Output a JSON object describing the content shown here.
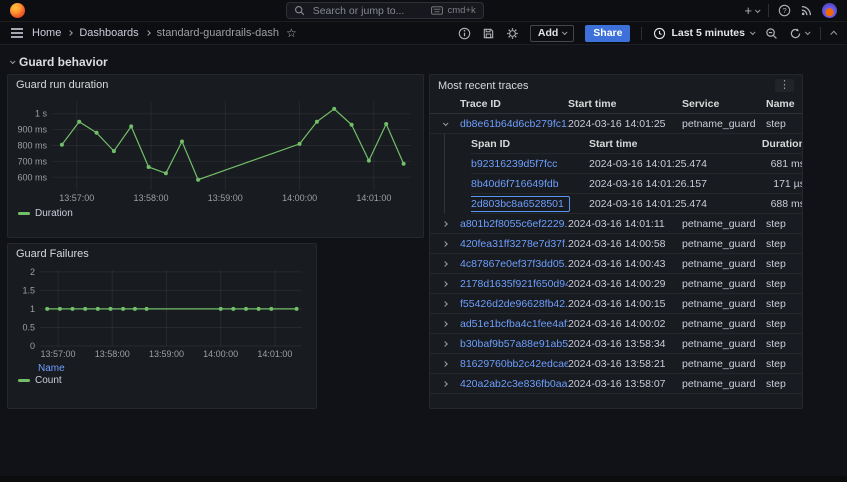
{
  "topnav": {
    "search": {
      "placeholder": "Search or jump to...",
      "shortcut": "cmd+k"
    },
    "plus_label": "+"
  },
  "toolbar": {
    "breadcrumb": [
      "Home",
      "Dashboards",
      "standard-guardrails-dash"
    ],
    "add_label": "Add",
    "share_label": "Share",
    "time_range": "Last 5 minutes"
  },
  "section": {
    "title": "Guard behavior"
  },
  "chart_data": [
    {
      "type": "line",
      "title": "Guard run duration",
      "x_range": [
        "13:56:40",
        "14:01:30"
      ],
      "x_ticks": [
        "13:57:00",
        "13:58:00",
        "13:59:00",
        "14:00:00",
        "14:01:00"
      ],
      "y_range": [
        520,
        1080
      ],
      "y_ticks": [
        {
          "v": 600,
          "label": "600 ms"
        },
        {
          "v": 700,
          "label": "700 ms"
        },
        {
          "v": 800,
          "label": "800 ms"
        },
        {
          "v": 900,
          "label": "900 ms"
        },
        {
          "v": 1000,
          "label": "1 s"
        }
      ],
      "unit": "ms",
      "grid": true,
      "legend": [
        {
          "name": "Duration",
          "color": "#73bf69"
        }
      ],
      "series": [
        {
          "name": "Duration",
          "color": "#73bf69",
          "points": [
            [
              "13:56:48",
              805
            ],
            [
              "13:57:02",
              950
            ],
            [
              "13:57:16",
              880
            ],
            [
              "13:57:30",
              765
            ],
            [
              "13:57:44",
              920
            ],
            [
              "13:57:58",
              665
            ],
            [
              "13:58:12",
              625
            ],
            [
              "13:58:25",
              825
            ],
            [
              "13:58:38",
              585
            ],
            [
              "14:00:00",
              810
            ],
            [
              "14:00:14",
              950
            ],
            [
              "14:00:28",
              1030
            ],
            [
              "14:00:42",
              930
            ],
            [
              "14:00:56",
              705
            ],
            [
              "14:01:10",
              935
            ],
            [
              "14:01:24",
              685
            ]
          ]
        }
      ]
    },
    {
      "type": "line",
      "title": "Guard Failures",
      "field_label": "Name",
      "x_range": [
        "13:56:40",
        "14:01:30"
      ],
      "x_ticks": [
        "13:57:00",
        "13:58:00",
        "13:59:00",
        "14:00:00",
        "14:01:00"
      ],
      "y_range": [
        0,
        2.05
      ],
      "y_ticks": [
        {
          "v": 0,
          "label": "0"
        },
        {
          "v": 0.5,
          "label": "0.5"
        },
        {
          "v": 1,
          "label": "1"
        },
        {
          "v": 1.5,
          "label": "1.5"
        },
        {
          "v": 2,
          "label": "2"
        }
      ],
      "unit": "count",
      "grid": true,
      "legend": [
        {
          "name": "Count",
          "color": "#73bf69"
        }
      ],
      "series": [
        {
          "name": "Count",
          "color": "#73bf69",
          "points": [
            [
              "13:56:48",
              1
            ],
            [
              "13:57:02",
              1
            ],
            [
              "13:57:16",
              1
            ],
            [
              "13:57:30",
              1
            ],
            [
              "13:57:44",
              1
            ],
            [
              "13:57:58",
              1
            ],
            [
              "13:58:12",
              1
            ],
            [
              "13:58:25",
              1
            ],
            [
              "13:58:38",
              1
            ],
            [
              "14:00:00",
              1
            ],
            [
              "14:00:14",
              1
            ],
            [
              "14:00:28",
              1
            ],
            [
              "14:00:42",
              1
            ],
            [
              "14:00:56",
              1
            ],
            [
              "14:01:24",
              1
            ]
          ]
        }
      ]
    }
  ],
  "traces_table": {
    "title": "Most recent traces",
    "columns": [
      "Trace ID",
      "Start time",
      "Service",
      "Name"
    ],
    "rows": [
      {
        "trace_id": "db8e61b64d6cb279fc1...",
        "start": "2024-03-16 14:01:25",
        "service": "petname_guard",
        "name": "step",
        "expanded": true
      },
      {
        "trace_id": "a801b2f8055c6ef2229...",
        "start": "2024-03-16 14:01:11",
        "service": "petname_guard",
        "name": "step"
      },
      {
        "trace_id": "420fea31ff3278e7d37f...",
        "start": "2024-03-16 14:00:58",
        "service": "petname_guard",
        "name": "step"
      },
      {
        "trace_id": "4c87867e0ef37f3dd05...",
        "start": "2024-03-16 14:00:43",
        "service": "petname_guard",
        "name": "step"
      },
      {
        "trace_id": "2178d1635f921f650d94...",
        "start": "2024-03-16 14:00:29",
        "service": "petname_guard",
        "name": "step"
      },
      {
        "trace_id": "f55426d2de96628fb42...",
        "start": "2024-03-16 14:00:15",
        "service": "petname_guard",
        "name": "step"
      },
      {
        "trace_id": "ad51e1bcfba4c1fee4af3...",
        "start": "2024-03-16 14:00:02",
        "service": "petname_guard",
        "name": "step"
      },
      {
        "trace_id": "b30baf9b57a88e91ab5...",
        "start": "2024-03-16 13:58:34",
        "service": "petname_guard",
        "name": "step"
      },
      {
        "trace_id": "81629760bb2c42edcae...",
        "start": "2024-03-16 13:58:21",
        "service": "petname_guard",
        "name": "step"
      },
      {
        "trace_id": "420a2ab2c3e836fb0aa...",
        "start": "2024-03-16 13:58:07",
        "service": "petname_guard",
        "name": "step"
      }
    ],
    "span_table": {
      "columns": [
        "Span ID",
        "Start time",
        "Duration"
      ],
      "rows": [
        {
          "span_id": "b92316239d5f7fcc",
          "start": "2024-03-16 14:01:25.474",
          "duration": "681 ms"
        },
        {
          "span_id": "8b40d6f716649fdb",
          "start": "2024-03-16 14:01:26.157",
          "duration": "171 µs"
        },
        {
          "span_id": "2d803bc8a6528501",
          "start": "2024-03-16 14:01:25.474",
          "duration": "688 ms",
          "focused": true
        }
      ]
    }
  },
  "colors": {
    "series_green": "#73bf69",
    "link_blue": "#6e9fff",
    "share_blue": "#3d71d9",
    "focus_outline": "#5794f2",
    "panel_bg": "#181b1f",
    "page_bg": "#111217"
  }
}
